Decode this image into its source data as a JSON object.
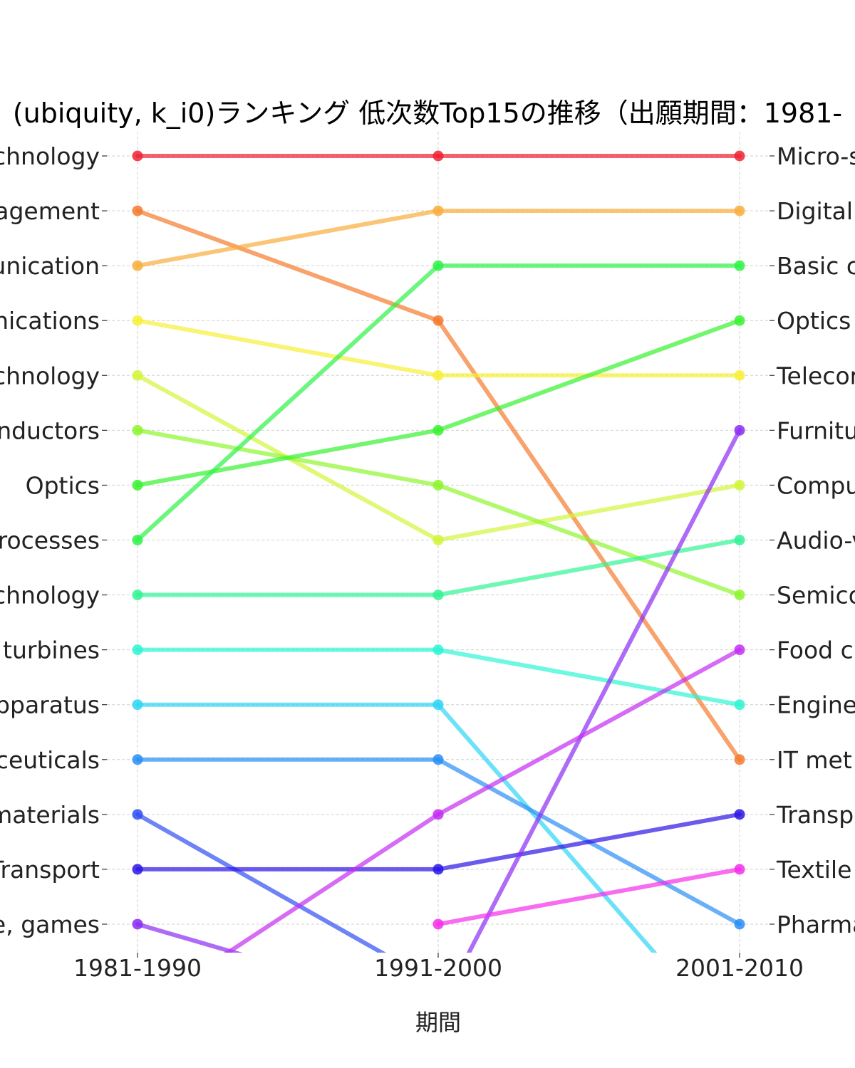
{
  "chart_data": {
    "type": "line",
    "title": "(ubiquity, k_i0)ランキング 低次数Top15の推移（出願期間：1981-",
    "xlabel": "期間",
    "ylabel": "",
    "categories": [
      "1981-1990",
      "1991-2000",
      "2001-2010"
    ],
    "left_labels": [
      "chnology",
      "agement",
      "unication",
      "nications",
      "chnology",
      "nductors",
      "Optics",
      "rocesses",
      "chnology",
      "turbines",
      "pparatus",
      "ceuticals",
      "materials",
      "Transport",
      "e, games"
    ],
    "right_labels": [
      "Micro-s",
      "Digital",
      "Basic c",
      "Optics",
      "Telecor",
      "Furnitu",
      "Compu",
      "Audio-v",
      "Semico",
      "Food cl",
      "Engine",
      "IT met",
      "Transpo",
      "Textile",
      "Pharma"
    ],
    "ylim": [
      1,
      15
    ],
    "y_inverted": true,
    "grid": true,
    "series": [
      {
        "color": "#ee2233",
        "values": [
          1,
          1,
          1
        ]
      },
      {
        "color": "#f57a2e",
        "values": [
          2,
          4,
          12
        ]
      },
      {
        "color": "#f8ae3c",
        "values": [
          3,
          2,
          2
        ]
      },
      {
        "color": "#f8f03a",
        "values": [
          4,
          5,
          5
        ]
      },
      {
        "color": "#d2f53a",
        "values": [
          5,
          8,
          7
        ]
      },
      {
        "color": "#8ef52e",
        "values": [
          6,
          7,
          9
        ]
      },
      {
        "color": "#38f230",
        "values": [
          7,
          6,
          4
        ]
      },
      {
        "color": "#2ef247",
        "values": [
          8,
          3,
          3
        ]
      },
      {
        "color": "#32f394",
        "values": [
          9,
          9,
          8
        ]
      },
      {
        "color": "#2ef5d4",
        "values": [
          10,
          10,
          11
        ]
      },
      {
        "color": "#2ed6f5",
        "values": [
          11,
          11,
          17.3
        ]
      },
      {
        "color": "#2a8ef5",
        "values": [
          12,
          12,
          15
        ]
      },
      {
        "color": "#2f4ff2",
        "values": [
          13,
          16.1,
          null
        ]
      },
      {
        "color": "#2b16e6",
        "values": [
          14,
          14,
          13
        ]
      },
      {
        "color": "#8a2cf2",
        "values": [
          15,
          16.6,
          6
        ]
      },
      {
        "color": "#c42ef2",
        "values": [
          16.6,
          13,
          10
        ]
      },
      {
        "color": "#f52eea",
        "values": [
          null,
          15,
          14
        ]
      }
    ]
  }
}
